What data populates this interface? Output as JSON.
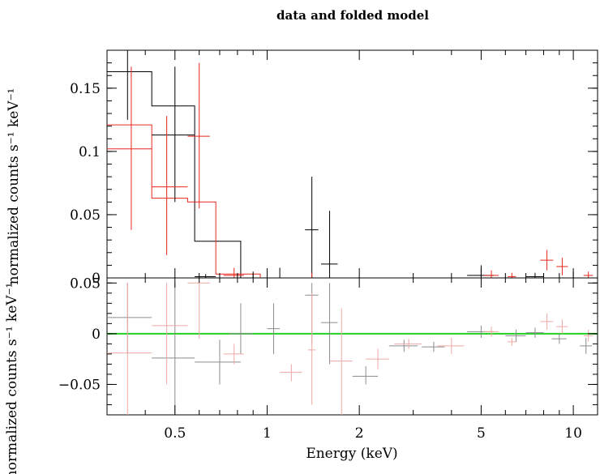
{
  "chart_data": [
    {
      "type": "scatter",
      "title": "data and folded model",
      "ylabel": "normalized counts s⁻¹ keV⁻¹",
      "xlabel": "",
      "xscale": "log",
      "xlim": [
        0.3,
        12
      ],
      "ylim": [
        0,
        0.18
      ],
      "yticks": [
        "0",
        "0.05",
        "0.1",
        "0.15"
      ],
      "series": [
        {
          "color": "#000000",
          "data": [
            {
              "x": 0.35,
              "xlo": 0.3,
              "xhi": 0.42,
              "y": 0.18,
              "ylo": 0.125,
              "yhi": 0.18
            },
            {
              "x": 0.5,
              "xlo": 0.42,
              "xhi": 0.58,
              "y": 0.113,
              "ylo": 0.06,
              "yhi": 0.167
            },
            {
              "x": 0.63,
              "xlo": 0.58,
              "xhi": 0.68,
              "y": 0.001,
              "ylo": 0.0,
              "yhi": 0.003
            },
            {
              "x": 0.9,
              "xlo": 0.82,
              "xhi": 0.98,
              "y": 0.0,
              "ylo": 0.0,
              "yhi": 0.005
            },
            {
              "x": 1.1,
              "xlo": 1.08,
              "xhi": 1.12,
              "y": 0.0,
              "ylo": 0.0,
              "yhi": 0.008
            },
            {
              "x": 1.4,
              "xlo": 1.33,
              "xhi": 1.47,
              "y": 0.038,
              "ylo": 0.0,
              "yhi": 0.08
            },
            {
              "x": 1.6,
              "xlo": 1.5,
              "xhi": 1.7,
              "y": 0.011,
              "ylo": 0.0,
              "yhi": 0.053
            },
            {
              "x": 5.0,
              "xlo": 4.5,
              "xhi": 5.5,
              "y": 0.002,
              "ylo": 0.0,
              "yhi": 0.01
            },
            {
              "x": 7.5,
              "xlo": 7.0,
              "xhi": 8.0,
              "y": 0.001,
              "ylo": 0.0,
              "yhi": 0.004
            },
            {
              "x": 10.0,
              "xlo": 9.5,
              "xhi": 10.5,
              "y": 0.0,
              "ylo": 0.0,
              "yhi": 0.005
            }
          ]
        },
        {
          "color": "#e8271e",
          "data": [
            {
              "x": 0.36,
              "xlo": 0.3,
              "xhi": 0.42,
              "y": 0.102,
              "ylo": 0.038,
              "yhi": 0.167
            },
            {
              "x": 0.47,
              "xlo": 0.42,
              "xhi": 0.55,
              "y": 0.072,
              "ylo": 0.018,
              "yhi": 0.128
            },
            {
              "x": 0.6,
              "xlo": 0.55,
              "xhi": 0.65,
              "y": 0.112,
              "ylo": 0.055,
              "yhi": 0.17
            },
            {
              "x": 0.78,
              "xlo": 0.72,
              "xhi": 0.84,
              "y": 0.002,
              "ylo": 0.0,
              "yhi": 0.008
            },
            {
              "x": 1.4,
              "xlo": 1.36,
              "xhi": 1.44,
              "y": 0.0,
              "ylo": 0.0,
              "yhi": 0.004
            },
            {
              "x": 5.4,
              "xlo": 5.1,
              "xhi": 5.7,
              "y": 0.002,
              "ylo": 0.0,
              "yhi": 0.006
            },
            {
              "x": 6.3,
              "xlo": 6.1,
              "xhi": 6.5,
              "y": 0.001,
              "ylo": 0.0,
              "yhi": 0.004
            },
            {
              "x": 8.2,
              "xlo": 7.8,
              "xhi": 8.6,
              "y": 0.014,
              "ylo": 0.006,
              "yhi": 0.022
            },
            {
              "x": 9.2,
              "xlo": 8.8,
              "xhi": 9.6,
              "y": 0.009,
              "ylo": 0.002,
              "yhi": 0.016
            },
            {
              "x": 11.2,
              "xlo": 10.8,
              "xhi": 11.6,
              "y": 0.002,
              "ylo": 0.0,
              "yhi": 0.005
            }
          ]
        }
      ],
      "models": [
        {
          "color": "#000000",
          "steps": [
            {
              "xlo": 0.3,
              "xhi": 0.42,
              "y": 0.163
            },
            {
              "xlo": 0.42,
              "xhi": 0.58,
              "y": 0.136
            },
            {
              "xlo": 0.58,
              "xhi": 0.82,
              "y": 0.029
            },
            {
              "xlo": 0.82,
              "xhi": 12,
              "y": 0.0
            }
          ]
        },
        {
          "color": "#e8271e",
          "steps": [
            {
              "xlo": 0.3,
              "xhi": 0.42,
              "y": 0.121
            },
            {
              "xlo": 0.42,
              "xhi": 0.55,
              "y": 0.063
            },
            {
              "xlo": 0.55,
              "xhi": 0.68,
              "y": 0.06
            },
            {
              "xlo": 0.68,
              "xhi": 0.95,
              "y": 0.003
            },
            {
              "xlo": 0.95,
              "xhi": 12,
              "y": 0.0
            }
          ]
        }
      ]
    },
    {
      "type": "scatter",
      "title": "",
      "ylabel": "normalized counts s⁻¹ keV⁻¹",
      "xlabel": "Energy (keV)",
      "xscale": "log",
      "xlim": [
        0.3,
        12
      ],
      "ylim": [
        -0.08,
        0.055
      ],
      "yticks": [
        "0.05",
        "0",
        "−0.05"
      ],
      "xticks": [
        "0.5",
        "1",
        "2",
        "5",
        "10"
      ],
      "reference_line": {
        "y": 0,
        "color": "#22d022"
      },
      "series": [
        {
          "color": "#8c8c8c",
          "data": [
            {
              "x": 0.35,
              "xlo": 0.3,
              "xhi": 0.42,
              "y": 0.016,
              "ylo": -0.02,
              "yhi": 0.05
            },
            {
              "x": 0.5,
              "xlo": 0.42,
              "xhi": 0.58,
              "y": -0.024,
              "ylo": -0.08,
              "yhi": 0.05
            },
            {
              "x": 0.7,
              "xlo": 0.58,
              "xhi": 0.82,
              "y": -0.028,
              "ylo": -0.05,
              "yhi": -0.006
            },
            {
              "x": 0.82,
              "xlo": 0.75,
              "xhi": 0.9,
              "y": 0.0,
              "ylo": -0.02,
              "yhi": 0.03
            },
            {
              "x": 1.05,
              "xlo": 1.0,
              "xhi": 1.1,
              "y": 0.005,
              "ylo": -0.02,
              "yhi": 0.03
            },
            {
              "x": 1.4,
              "xlo": 1.33,
              "xhi": 1.47,
              "y": 0.038,
              "ylo": -0.01,
              "yhi": 0.05
            },
            {
              "x": 1.6,
              "xlo": 1.5,
              "xhi": 1.7,
              "y": 0.011,
              "ylo": -0.03,
              "yhi": 0.05
            },
            {
              "x": 2.1,
              "xlo": 1.9,
              "xhi": 2.3,
              "y": -0.042,
              "ylo": -0.05,
              "yhi": -0.032
            },
            {
              "x": 2.8,
              "xlo": 2.5,
              "xhi": 3.1,
              "y": -0.012,
              "ylo": -0.018,
              "yhi": -0.006
            },
            {
              "x": 3.5,
              "xlo": 3.2,
              "xhi": 3.8,
              "y": -0.013,
              "ylo": -0.018,
              "yhi": -0.008
            },
            {
              "x": 5.0,
              "xlo": 4.5,
              "xhi": 5.5,
              "y": 0.002,
              "ylo": -0.004,
              "yhi": 0.008
            },
            {
              "x": 6.5,
              "xlo": 6.0,
              "xhi": 7.0,
              "y": -0.002,
              "ylo": -0.008,
              "yhi": 0.004
            },
            {
              "x": 7.5,
              "xlo": 7.0,
              "xhi": 8.0,
              "y": 0.001,
              "ylo": -0.004,
              "yhi": 0.006
            },
            {
              "x": 9.0,
              "xlo": 8.5,
              "xhi": 9.5,
              "y": -0.005,
              "ylo": -0.01,
              "yhi": 0.0
            },
            {
              "x": 11.0,
              "xlo": 10.5,
              "xhi": 11.5,
              "y": -0.012,
              "ylo": -0.02,
              "yhi": -0.004
            }
          ]
        },
        {
          "color": "#f0a8a4",
          "data": [
            {
              "x": 0.35,
              "xlo": 0.3,
              "xhi": 0.42,
              "y": -0.019,
              "ylo": -0.08,
              "yhi": 0.05
            },
            {
              "x": 0.47,
              "xlo": 0.42,
              "xhi": 0.55,
              "y": 0.008,
              "ylo": -0.05,
              "yhi": 0.05
            },
            {
              "x": 0.6,
              "xlo": 0.55,
              "xhi": 0.65,
              "y": 0.05,
              "ylo": -0.005,
              "yhi": 0.05
            },
            {
              "x": 0.78,
              "xlo": 0.72,
              "xhi": 0.84,
              "y": -0.02,
              "ylo": -0.03,
              "yhi": -0.01
            },
            {
              "x": 1.2,
              "xlo": 1.1,
              "xhi": 1.3,
              "y": -0.038,
              "ylo": -0.047,
              "yhi": -0.03
            },
            {
              "x": 1.4,
              "xlo": 1.36,
              "xhi": 1.44,
              "y": -0.016,
              "ylo": -0.07,
              "yhi": 0.04
            },
            {
              "x": 1.75,
              "xlo": 1.6,
              "xhi": 1.9,
              "y": -0.027,
              "ylo": -0.08,
              "yhi": 0.025
            },
            {
              "x": 2.3,
              "xlo": 2.1,
              "xhi": 2.5,
              "y": -0.025,
              "ylo": -0.035,
              "yhi": -0.015
            },
            {
              "x": 2.9,
              "xlo": 2.6,
              "xhi": 3.2,
              "y": -0.01,
              "ylo": -0.015,
              "yhi": -0.005
            },
            {
              "x": 4.0,
              "xlo": 3.6,
              "xhi": 4.4,
              "y": -0.012,
              "ylo": -0.02,
              "yhi": -0.004
            },
            {
              "x": 5.4,
              "xlo": 5.1,
              "xhi": 5.7,
              "y": 0.002,
              "ylo": -0.003,
              "yhi": 0.007
            },
            {
              "x": 6.3,
              "xlo": 6.1,
              "xhi": 6.5,
              "y": -0.008,
              "ylo": -0.012,
              "yhi": -0.004
            },
            {
              "x": 8.2,
              "xlo": 7.8,
              "xhi": 8.6,
              "y": 0.012,
              "ylo": 0.004,
              "yhi": 0.02
            },
            {
              "x": 9.2,
              "xlo": 8.8,
              "xhi": 9.6,
              "y": 0.007,
              "ylo": 0.0,
              "yhi": 0.014
            },
            {
              "x": 11.2,
              "xlo": 10.8,
              "xhi": 11.6,
              "y": -0.002,
              "ylo": -0.008,
              "yhi": 0.004
            }
          ]
        }
      ]
    }
  ]
}
